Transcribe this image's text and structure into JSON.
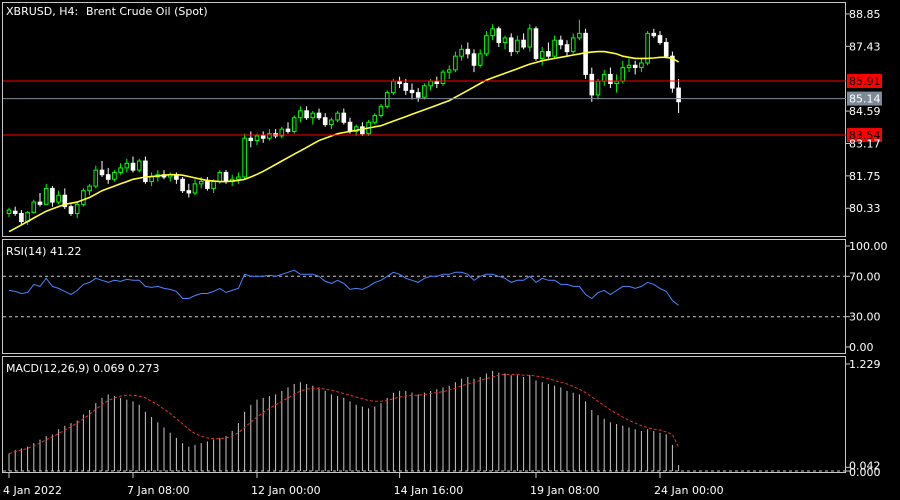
{
  "header": {
    "symbol": "XBRUSD, H4:",
    "description": "Brent Crude Oil (Spot)"
  },
  "colors": {
    "bull": "#00ff00",
    "bear": "#ffffff",
    "ma": "#ffff33",
    "rsi": "#4a84ff",
    "macd_signal": "#e0342a",
    "macd_hist": "#c8c8c8",
    "level": "#ff0000",
    "bid": "#7f8a99"
  },
  "chart_data": [
    {
      "type": "candlestick",
      "title": "",
      "price_ticks": [
        "88.85",
        "87.43",
        "84.59",
        "83.17",
        "81.75",
        "80.33"
      ],
      "ylim": [
        79.2,
        89.2
      ],
      "levels": [
        {
          "name": "upper",
          "value": 85.91,
          "label": "85.91"
        },
        {
          "name": "current",
          "value": 85.14,
          "label": "85.14"
        },
        {
          "name": "lower",
          "value": 83.54,
          "label": "83.54"
        }
      ],
      "ohlc": [
        [
          80.1,
          80.35,
          79.95,
          80.25
        ],
        [
          80.2,
          80.4,
          80.0,
          80.1
        ],
        [
          80.1,
          80.25,
          79.6,
          79.75
        ],
        [
          79.75,
          80.2,
          79.6,
          80.15
        ],
        [
          80.15,
          80.7,
          80.1,
          80.6
        ],
        [
          80.6,
          81.0,
          80.4,
          80.5
        ],
        [
          80.5,
          81.4,
          80.5,
          81.2
        ],
        [
          81.2,
          81.3,
          80.4,
          80.6
        ],
        [
          80.6,
          81.1,
          80.5,
          80.9
        ],
        [
          80.9,
          81.2,
          80.3,
          80.4
        ],
        [
          80.4,
          80.5,
          80.0,
          80.1
        ],
        [
          80.1,
          80.6,
          79.9,
          80.5
        ],
        [
          80.5,
          81.2,
          80.4,
          81.1
        ],
        [
          81.1,
          81.4,
          80.9,
          81.3
        ],
        [
          81.3,
          82.2,
          81.2,
          82.0
        ],
        [
          82.0,
          82.4,
          81.7,
          81.8
        ],
        [
          81.8,
          82.1,
          81.4,
          81.6
        ],
        [
          81.6,
          82.0,
          81.5,
          81.9
        ],
        [
          81.9,
          82.3,
          81.8,
          82.1
        ],
        [
          82.1,
          82.5,
          81.9,
          82.3
        ],
        [
          82.3,
          82.6,
          81.9,
          82.0
        ],
        [
          82.0,
          82.5,
          81.9,
          82.4
        ],
        [
          82.4,
          82.6,
          81.4,
          81.5
        ],
        [
          81.5,
          81.9,
          81.3,
          81.7
        ],
        [
          81.7,
          82.0,
          81.5,
          81.8
        ],
        [
          81.8,
          82.0,
          81.6,
          81.7
        ],
        [
          81.7,
          81.9,
          81.5,
          81.8
        ],
        [
          81.8,
          81.9,
          81.4,
          81.6
        ],
        [
          81.6,
          81.7,
          81.0,
          81.1
        ],
        [
          81.1,
          81.4,
          80.8,
          81.0
        ],
        [
          81.0,
          81.6,
          80.9,
          81.4
        ],
        [
          81.4,
          81.7,
          81.2,
          81.5
        ],
        [
          81.5,
          81.7,
          81.1,
          81.2
        ],
        [
          81.2,
          81.6,
          81.0,
          81.5
        ],
        [
          81.5,
          82.0,
          81.4,
          81.9
        ],
        [
          81.9,
          82.0,
          81.4,
          81.5
        ],
        [
          81.5,
          81.8,
          81.3,
          81.6
        ],
        [
          81.6,
          81.9,
          81.4,
          81.7
        ],
        [
          81.7,
          83.6,
          81.6,
          83.4
        ],
        [
          83.4,
          83.7,
          83.0,
          83.3
        ],
        [
          83.3,
          83.6,
          83.1,
          83.5
        ],
        [
          83.5,
          83.7,
          83.2,
          83.4
        ],
        [
          83.4,
          83.8,
          83.3,
          83.6
        ],
        [
          83.6,
          83.8,
          83.4,
          83.5
        ],
        [
          83.5,
          83.9,
          83.4,
          83.8
        ],
        [
          83.8,
          84.1,
          83.6,
          83.7
        ],
        [
          83.7,
          84.4,
          83.6,
          84.3
        ],
        [
          84.3,
          84.8,
          84.1,
          84.6
        ],
        [
          84.6,
          84.8,
          84.2,
          84.3
        ],
        [
          84.3,
          84.6,
          84.0,
          84.5
        ],
        [
          84.5,
          84.7,
          84.2,
          84.3
        ],
        [
          84.3,
          84.5,
          83.9,
          84.0
        ],
        [
          84.0,
          84.3,
          83.8,
          84.2
        ],
        [
          84.2,
          84.6,
          84.1,
          84.5
        ],
        [
          84.5,
          84.7,
          84.0,
          84.1
        ],
        [
          84.1,
          84.3,
          83.6,
          83.7
        ],
        [
          83.7,
          84.0,
          83.5,
          83.9
        ],
        [
          83.9,
          84.1,
          83.5,
          83.6
        ],
        [
          83.6,
          84.2,
          83.5,
          84.1
        ],
        [
          84.1,
          84.5,
          84.0,
          84.4
        ],
        [
          84.4,
          84.9,
          84.3,
          84.8
        ],
        [
          84.8,
          85.5,
          84.7,
          85.4
        ],
        [
          85.4,
          86.0,
          85.3,
          85.9
        ],
        [
          85.9,
          86.1,
          85.6,
          85.8
        ],
        [
          85.8,
          86.0,
          85.3,
          85.5
        ],
        [
          85.5,
          85.8,
          85.1,
          85.4
        ],
        [
          85.4,
          85.6,
          85.0,
          85.2
        ],
        [
          85.2,
          85.8,
          85.1,
          85.7
        ],
        [
          85.7,
          86.0,
          85.5,
          85.9
        ],
        [
          85.9,
          86.1,
          85.6,
          85.8
        ],
        [
          85.8,
          86.4,
          85.7,
          86.3
        ],
        [
          86.3,
          86.6,
          86.0,
          86.4
        ],
        [
          86.4,
          87.2,
          86.3,
          87.0
        ],
        [
          87.0,
          87.5,
          86.8,
          87.3
        ],
        [
          87.3,
          87.6,
          86.9,
          87.1
        ],
        [
          87.1,
          87.3,
          86.3,
          86.6
        ],
        [
          86.6,
          87.3,
          86.5,
          87.1
        ],
        [
          87.1,
          88.1,
          87.0,
          87.9
        ],
        [
          87.9,
          88.4,
          87.7,
          88.2
        ],
        [
          88.2,
          88.3,
          87.4,
          87.6
        ],
        [
          87.6,
          87.9,
          87.3,
          87.8
        ],
        [
          87.8,
          88.0,
          87.0,
          87.2
        ],
        [
          87.2,
          87.9,
          87.1,
          87.7
        ],
        [
          87.7,
          88.0,
          87.3,
          87.4
        ],
        [
          87.4,
          88.4,
          87.2,
          88.2
        ],
        [
          88.2,
          88.3,
          86.8,
          86.9
        ],
        [
          86.9,
          87.4,
          86.6,
          87.2
        ],
        [
          87.2,
          87.6,
          86.9,
          87.0
        ],
        [
          87.0,
          87.9,
          86.9,
          87.7
        ],
        [
          87.7,
          87.9,
          87.3,
          87.5
        ],
        [
          87.5,
          87.7,
          87.0,
          87.2
        ],
        [
          87.2,
          88.0,
          87.1,
          87.8
        ],
        [
          87.8,
          88.6,
          87.7,
          88.0
        ],
        [
          88.0,
          88.2,
          86.0,
          86.2
        ],
        [
          86.2,
          86.5,
          85.0,
          85.3
        ],
        [
          85.3,
          86.0,
          85.1,
          85.9
        ],
        [
          85.9,
          86.4,
          85.7,
          86.2
        ],
        [
          86.2,
          86.5,
          85.6,
          85.8
        ],
        [
          85.8,
          86.2,
          85.4,
          85.9
        ],
        [
          85.9,
          86.8,
          85.8,
          86.5
        ],
        [
          86.5,
          86.9,
          86.3,
          86.6
        ],
        [
          86.6,
          86.8,
          86.2,
          86.5
        ],
        [
          86.5,
          86.9,
          86.3,
          86.7
        ],
        [
          86.7,
          88.1,
          86.6,
          88.0
        ],
        [
          88.0,
          88.2,
          87.8,
          87.9
        ],
        [
          87.9,
          88.1,
          87.5,
          87.6
        ],
        [
          87.6,
          87.8,
          86.9,
          87.0
        ],
        [
          87.0,
          87.2,
          85.4,
          85.6
        ],
        [
          85.6,
          86.0,
          84.5,
          85.0
        ]
      ],
      "ma": [
        79.3,
        79.45,
        79.6,
        79.75,
        79.9,
        80.05,
        80.2,
        80.3,
        80.4,
        80.5,
        80.55,
        80.6,
        80.7,
        80.8,
        80.95,
        81.1,
        81.2,
        81.3,
        81.4,
        81.5,
        81.6,
        81.65,
        81.7,
        81.72,
        81.75,
        81.78,
        81.8,
        81.8,
        81.78,
        81.72,
        81.66,
        81.6,
        81.55,
        81.52,
        81.5,
        81.5,
        81.52,
        81.55,
        81.6,
        81.7,
        81.82,
        81.95,
        82.1,
        82.25,
        82.4,
        82.55,
        82.7,
        82.85,
        83.0,
        83.15,
        83.3,
        83.4,
        83.5,
        83.6,
        83.65,
        83.7,
        83.75,
        83.8,
        83.85,
        83.9,
        83.95,
        84.05,
        84.15,
        84.25,
        84.35,
        84.45,
        84.55,
        84.65,
        84.75,
        84.85,
        84.95,
        85.05,
        85.2,
        85.35,
        85.5,
        85.65,
        85.8,
        85.95,
        86.05,
        86.15,
        86.25,
        86.35,
        86.45,
        86.55,
        86.65,
        86.72,
        86.8,
        86.85,
        86.9,
        86.95,
        87.0,
        87.05,
        87.1,
        87.15,
        87.18,
        87.2,
        87.2,
        87.15,
        87.1,
        87.0,
        86.95,
        86.9,
        86.9,
        86.9,
        86.92,
        86.95,
        86.95,
        86.9,
        86.75
      ]
    },
    {
      "type": "line",
      "title": "RSI(14) 41.22",
      "name": "RSI(14)",
      "last_value": 41.22,
      "levels": [
        70,
        30
      ],
      "ticks": [
        "100.00",
        "70.00",
        "30.00",
        "0.00"
      ],
      "ylim": [
        0,
        100
      ],
      "values": [
        56,
        55,
        53,
        54,
        62,
        60,
        68,
        60,
        58,
        55,
        52,
        56,
        62,
        64,
        68,
        66,
        64,
        66,
        65,
        67,
        66,
        66,
        60,
        59,
        60,
        58,
        57,
        55,
        48,
        48,
        51,
        53,
        53,
        55,
        58,
        54,
        56,
        58,
        72,
        70,
        70,
        70,
        71,
        70,
        72,
        74,
        76,
        72,
        72,
        72,
        70,
        65,
        63,
        66,
        63,
        57,
        58,
        57,
        60,
        64,
        66,
        70,
        74,
        72,
        68,
        66,
        64,
        68,
        70,
        70,
        72,
        72,
        74,
        74,
        72,
        66,
        70,
        72,
        72,
        70,
        68,
        64,
        66,
        66,
        70,
        64,
        68,
        66,
        66,
        62,
        62,
        60,
        60,
        52,
        48,
        54,
        56,
        52,
        56,
        60,
        60,
        58,
        60,
        64,
        62,
        58,
        55,
        46,
        41.22
      ]
    },
    {
      "type": "bar+line",
      "title": "MACD(12,26,9) 0.069 0.273",
      "name": "MACD(12,26,9)",
      "last_values": [
        0.069,
        0.273
      ],
      "ticks": [
        "1.229",
        "0.042",
        "0.000"
      ],
      "ylim": [
        0,
        1.229
      ],
      "histogram": [
        0.2,
        0.24,
        0.26,
        0.28,
        0.32,
        0.36,
        0.4,
        0.42,
        0.48,
        0.52,
        0.55,
        0.58,
        0.65,
        0.7,
        0.78,
        0.84,
        0.88,
        0.86,
        0.84,
        0.82,
        0.8,
        0.76,
        0.68,
        0.62,
        0.56,
        0.5,
        0.44,
        0.38,
        0.32,
        0.28,
        0.3,
        0.32,
        0.34,
        0.36,
        0.38,
        0.4,
        0.46,
        0.55,
        0.68,
        0.76,
        0.82,
        0.84,
        0.86,
        0.88,
        0.92,
        0.96,
        1.0,
        1.02,
        1.0,
        0.98,
        0.96,
        0.92,
        0.88,
        0.86,
        0.84,
        0.8,
        0.76,
        0.74,
        0.72,
        0.74,
        0.78,
        0.84,
        0.9,
        0.92,
        0.92,
        0.9,
        0.88,
        0.9,
        0.92,
        0.94,
        0.96,
        0.98,
        1.02,
        1.06,
        1.08,
        1.06,
        1.08,
        1.12,
        1.15,
        1.13,
        1.12,
        1.1,
        1.1,
        1.08,
        1.1,
        1.04,
        1.02,
        1.0,
        0.98,
        0.96,
        0.92,
        0.9,
        0.88,
        0.8,
        0.7,
        0.64,
        0.6,
        0.56,
        0.54,
        0.52,
        0.5,
        0.48,
        0.46,
        0.48,
        0.46,
        0.44,
        0.42,
        0.3,
        0.069
      ],
      "signal": [
        0.2,
        0.22,
        0.24,
        0.26,
        0.29,
        0.32,
        0.36,
        0.39,
        0.43,
        0.47,
        0.51,
        0.55,
        0.6,
        0.65,
        0.71,
        0.76,
        0.81,
        0.84,
        0.86,
        0.87,
        0.87,
        0.86,
        0.84,
        0.8,
        0.76,
        0.71,
        0.66,
        0.6,
        0.54,
        0.48,
        0.43,
        0.4,
        0.38,
        0.37,
        0.37,
        0.38,
        0.4,
        0.44,
        0.5,
        0.56,
        0.62,
        0.67,
        0.72,
        0.76,
        0.8,
        0.84,
        0.88,
        0.92,
        0.94,
        0.95,
        0.95,
        0.94,
        0.93,
        0.91,
        0.89,
        0.87,
        0.85,
        0.83,
        0.81,
        0.8,
        0.8,
        0.81,
        0.83,
        0.85,
        0.86,
        0.87,
        0.87,
        0.88,
        0.89,
        0.9,
        0.91,
        0.93,
        0.95,
        0.98,
        1.0,
        1.02,
        1.04,
        1.06,
        1.08,
        1.1,
        1.11,
        1.11,
        1.11,
        1.1,
        1.1,
        1.09,
        1.08,
        1.06,
        1.04,
        1.02,
        1.0,
        0.97,
        0.94,
        0.9,
        0.85,
        0.8,
        0.75,
        0.7,
        0.66,
        0.62,
        0.58,
        0.55,
        0.52,
        0.5,
        0.48,
        0.47,
        0.45,
        0.42,
        0.273
      ]
    }
  ],
  "time_axis": [
    {
      "label": "4 Jan 2022",
      "bar": 0
    },
    {
      "label": "7 Jan 08:00",
      "bar": 20
    },
    {
      "label": "12 Jan 00:00",
      "bar": 40
    },
    {
      "label": "14 Jan 16:00",
      "bar": 63
    },
    {
      "label": "19 Jan 08:00",
      "bar": 85
    },
    {
      "label": "24 Jan 00:00",
      "bar": 105
    }
  ]
}
